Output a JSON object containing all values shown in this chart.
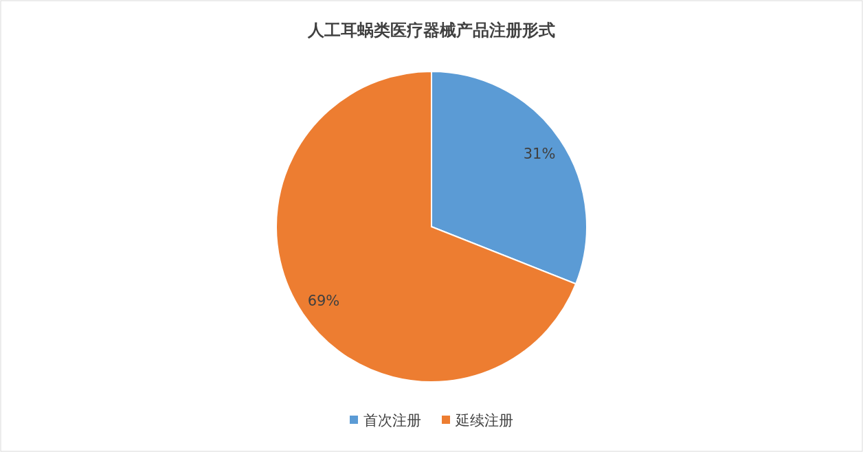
{
  "chart_data": {
    "type": "pie",
    "title": "人工耳蜗类医疗器械产品注册形式",
    "categories": [
      "首次注册",
      "延续注册"
    ],
    "values": [
      31,
      69
    ],
    "colors": [
      "#5b9bd5",
      "#ed7d31"
    ],
    "value_labels": [
      "31%",
      "69%"
    ],
    "legend": "bottom"
  }
}
